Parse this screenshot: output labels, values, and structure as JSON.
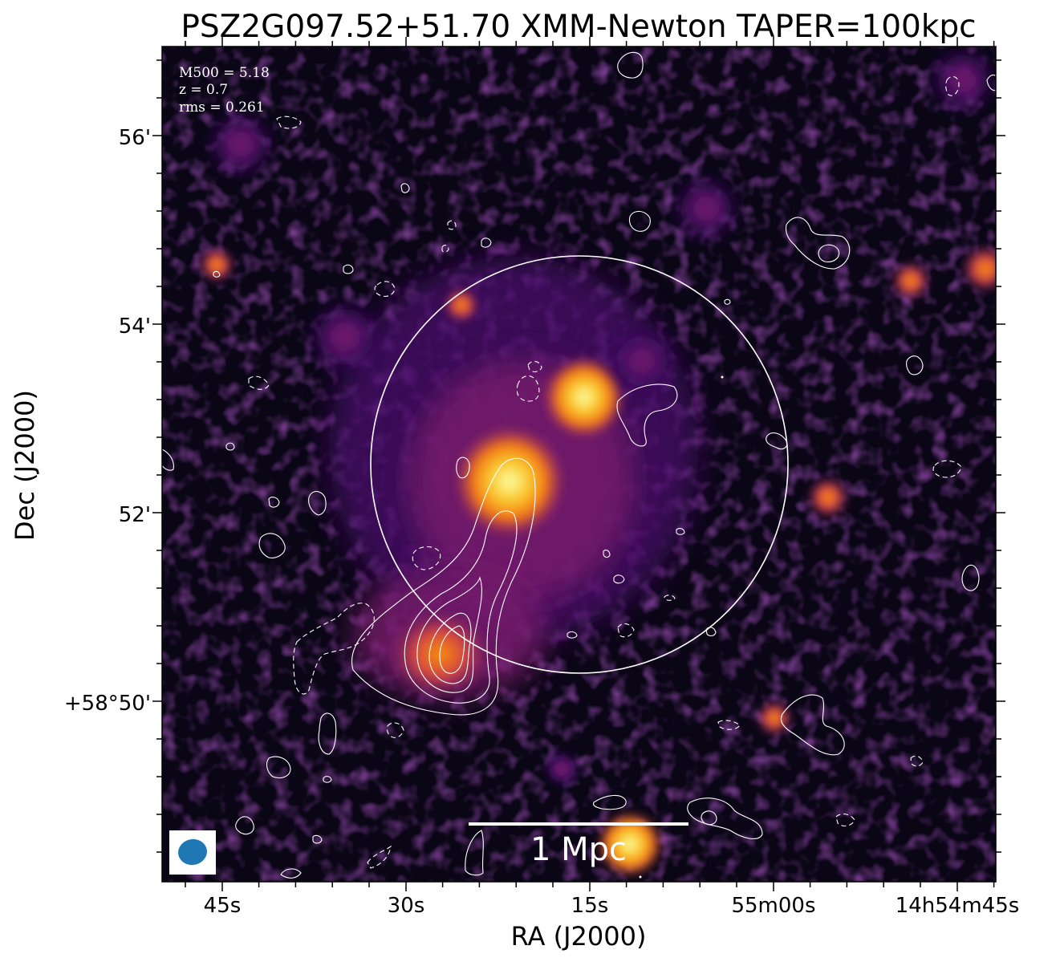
{
  "title": "PSZ2G097.52+51.70 XMM-Newton TAPER=100kpc",
  "annotations": {
    "m500": "M500 = 5.18",
    "redshift": "z = 0.7",
    "rms": "rms = 0.261"
  },
  "axes": {
    "xlabel": "RA (J2000)",
    "ylabel": "Dec (J2000)",
    "x_ticks": [
      "45s",
      "30s",
      "15s",
      "55m00s",
      "14h54m45s"
    ],
    "y_ticks": [
      "56'",
      "54'",
      "52'",
      "+58°50'"
    ]
  },
  "scale_bar": {
    "label": "1 Mpc"
  },
  "colors": {
    "background": "#000004",
    "contour": "#ffffff",
    "circle": "#ffffff",
    "beam": "#1f77b4",
    "colormap": "inferno"
  }
}
